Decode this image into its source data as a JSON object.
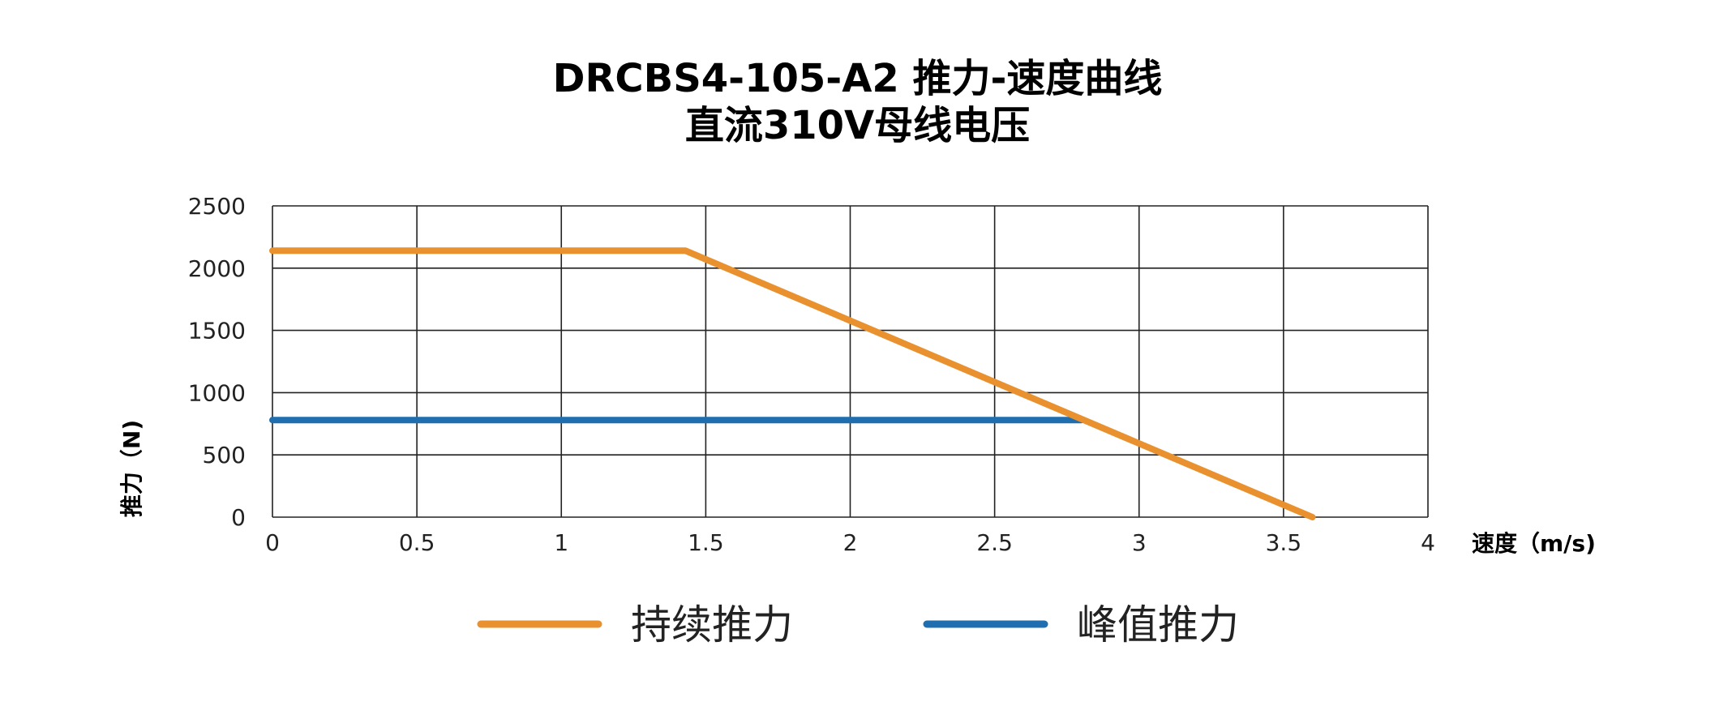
{
  "chart_data": {
    "type": "line",
    "title": "DRCBS4-105-A2 推力-速度曲线",
    "subtitle": "直流310V母线电压",
    "xlabel": "速度（m/s)",
    "ylabel": "推力（N)",
    "xlim": [
      0,
      4
    ],
    "ylim": [
      0,
      2500
    ],
    "x_ticks": [
      "0",
      "0.5",
      "1",
      "1.5",
      "2",
      "2.5",
      "3",
      "3.5",
      "4"
    ],
    "y_ticks": [
      "0",
      "500",
      "1000",
      "1500",
      "2000",
      "2500"
    ],
    "grid": true,
    "legend_position": "bottom",
    "series": [
      {
        "name": "持续推力",
        "color": "#E8912E",
        "points": [
          [
            0,
            2140
          ],
          [
            1.43,
            2140
          ],
          [
            3.6,
            0
          ]
        ]
      },
      {
        "name": "峰值推力",
        "color": "#1F6EB0",
        "points": [
          [
            0,
            780
          ],
          [
            2.8,
            780
          ]
        ]
      }
    ]
  }
}
